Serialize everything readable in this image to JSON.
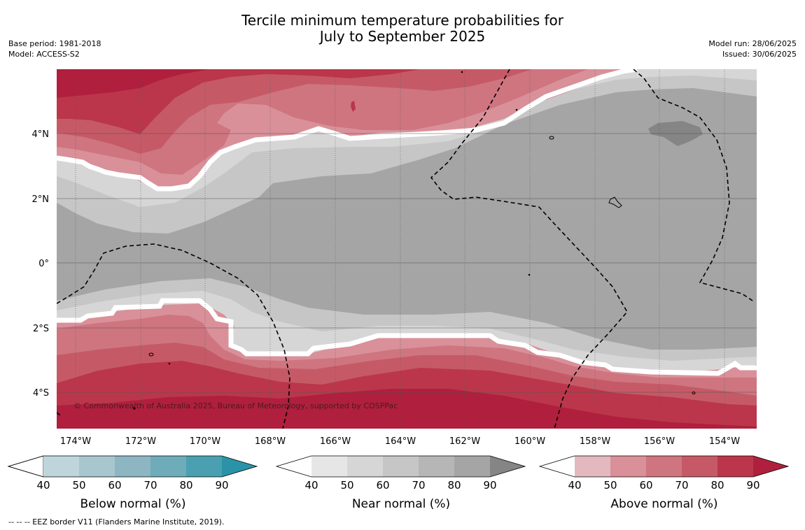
{
  "title_line1": "Tercile minimum temperature probabilities for",
  "title_line2": "July to September 2025",
  "base_period": "Base period: 1981-2018",
  "model": "Model: ACCESS-S2",
  "model_run": "Model run: 28/06/2025",
  "issued": "Issued: 30/06/2025",
  "copyright": "© Commonwealth of Australia 2025, Bureau of Meteorology, supported by COSPPac",
  "footnote": "--  --  -- EEZ border V11 (Flanders Marine Institute, 2019).",
  "lat_labels": [
    "4°N",
    "2°N",
    "0°",
    "2°S",
    "4°S"
  ],
  "lon_labels": [
    "174°W",
    "172°W",
    "170°W",
    "168°W",
    "166°W",
    "164°W",
    "162°W",
    "160°W",
    "158°W",
    "156°W",
    "154°W"
  ],
  "colorbars": [
    {
      "title": "Below normal (%)",
      "ticks": [
        "40",
        "50",
        "60",
        "70",
        "80",
        "90"
      ],
      "colors": [
        "#ffffff",
        "#bfd5dc",
        "#a8c6cd",
        "#8db6c2",
        "#6eacb9",
        "#4aa0b0",
        "#2a93a8"
      ]
    },
    {
      "title": "Near normal (%)",
      "ticks": [
        "40",
        "50",
        "60",
        "70",
        "80",
        "90"
      ],
      "colors": [
        "#ffffff",
        "#e6e6e6",
        "#d6d6d6",
        "#c6c6c6",
        "#b6b6b6",
        "#a5a5a5",
        "#858585"
      ]
    },
    {
      "title": "Above normal (%)",
      "ticks": [
        "40",
        "50",
        "60",
        "70",
        "80",
        "90"
      ],
      "colors": [
        "#ffffff",
        "#e3b8be",
        "#d99099",
        "#ce7580",
        "#c55a66",
        "#bb364b",
        "#b01f3d"
      ]
    }
  ],
  "map_colors": {
    "above_90": "#b01f3d",
    "above_80": "#bb364b",
    "above_70": "#c55a66",
    "above_60": "#ce7580",
    "above_50": "#d99099",
    "near_50": "#d6d6d6",
    "near_60": "#c6c6c6",
    "near_80": "#a5a5a5",
    "near_90": "#858585"
  }
}
